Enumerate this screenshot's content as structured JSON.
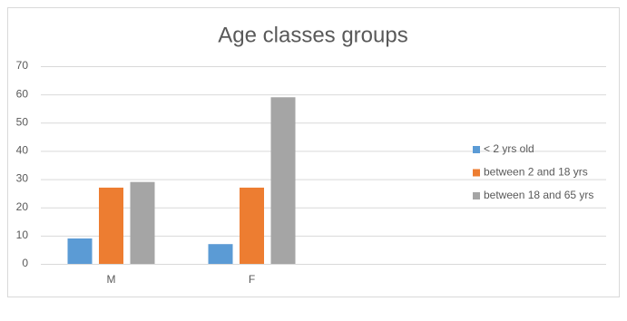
{
  "chart_data": {
    "type": "bar",
    "title": "Age classes groups",
    "categories": [
      "M",
      "F"
    ],
    "series": [
      {
        "name": "< 2 yrs old",
        "color": "#5b9bd5",
        "values": [
          9,
          7
        ]
      },
      {
        "name": "between 2 and 18 yrs",
        "color": "#ed7d31",
        "values": [
          27,
          27
        ]
      },
      {
        "name": "between 18 and 65 yrs",
        "color": "#a5a5a5",
        "values": [
          29,
          59
        ]
      }
    ],
    "ylim": [
      0,
      70
    ],
    "yticks": [
      0,
      10,
      20,
      30,
      40,
      50,
      60,
      70
    ],
    "grid": true,
    "legend": "right"
  }
}
